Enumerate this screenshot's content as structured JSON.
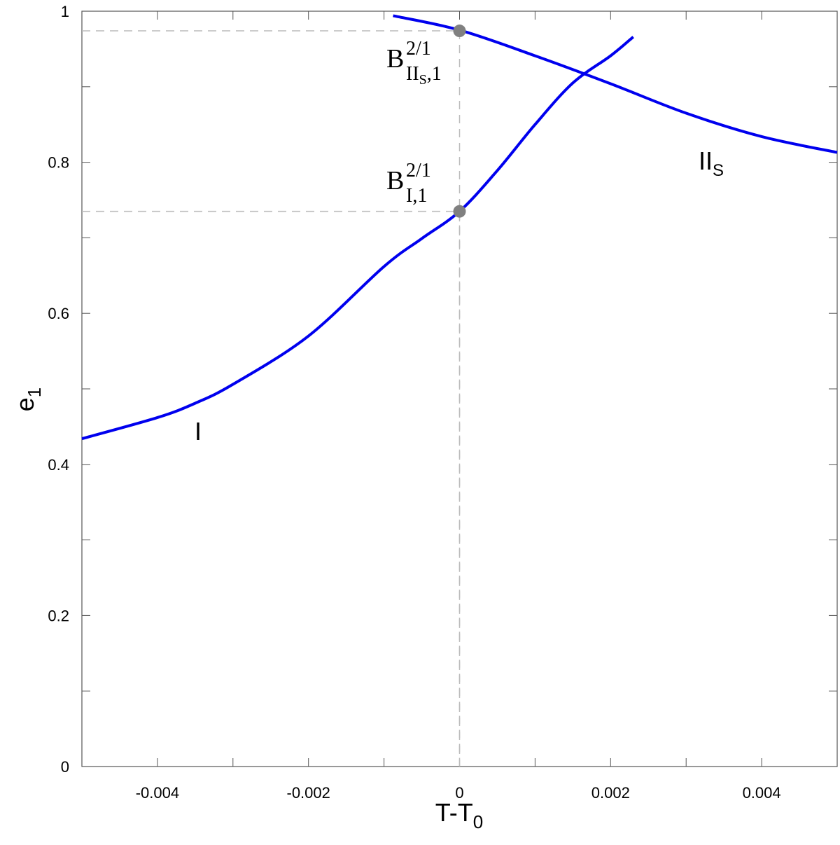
{
  "chart_data": {
    "type": "line",
    "xlabel": {
      "text": "T-T",
      "sub": "0"
    },
    "ylabel": {
      "text": "e",
      "sub": "1"
    },
    "xlim": [
      -0.005,
      0.005
    ],
    "ylim": [
      0,
      1
    ],
    "xticks": [
      -0.004,
      -0.002,
      0,
      0.002,
      0.004
    ],
    "yticks": [
      0,
      0.2,
      0.4,
      0.6,
      0.8,
      1
    ],
    "xticks_minor": [
      -0.003,
      -0.001,
      0.001,
      0.003
    ],
    "yticks_minor": [
      0.1,
      0.3,
      0.5,
      0.7,
      0.9
    ],
    "series": [
      {
        "name": "I",
        "color": "#0000ee",
        "x": [
          -0.005,
          -0.004,
          -0.0035,
          -0.003,
          -0.002,
          -0.001,
          -0.0005,
          0,
          0.0005,
          0.001,
          0.0015,
          0.002,
          0.0023
        ],
        "values": [
          0.434,
          0.462,
          0.481,
          0.506,
          0.57,
          0.662,
          0.699,
          0.735,
          0.789,
          0.85,
          0.905,
          0.941,
          0.966
        ]
      },
      {
        "name": "II",
        "name_sub": "S",
        "color": "#0000ee",
        "x": [
          -0.00088,
          0,
          0.001,
          0.002,
          0.003,
          0.004,
          0.005
        ],
        "values": [
          0.994,
          0.975,
          0.941,
          0.904,
          0.865,
          0.834,
          0.813
        ]
      }
    ],
    "points": [
      {
        "x": 0,
        "y": 0.974,
        "label": {
          "base": "B",
          "sup": "2/1",
          "sub": "II",
          "subsub": "S",
          "subtail": ",1"
        }
      },
      {
        "x": 0,
        "y": 0.735,
        "label": {
          "base": "B",
          "sup": "2/1",
          "sub": "I,1"
        }
      }
    ],
    "point_color": "#808080"
  }
}
